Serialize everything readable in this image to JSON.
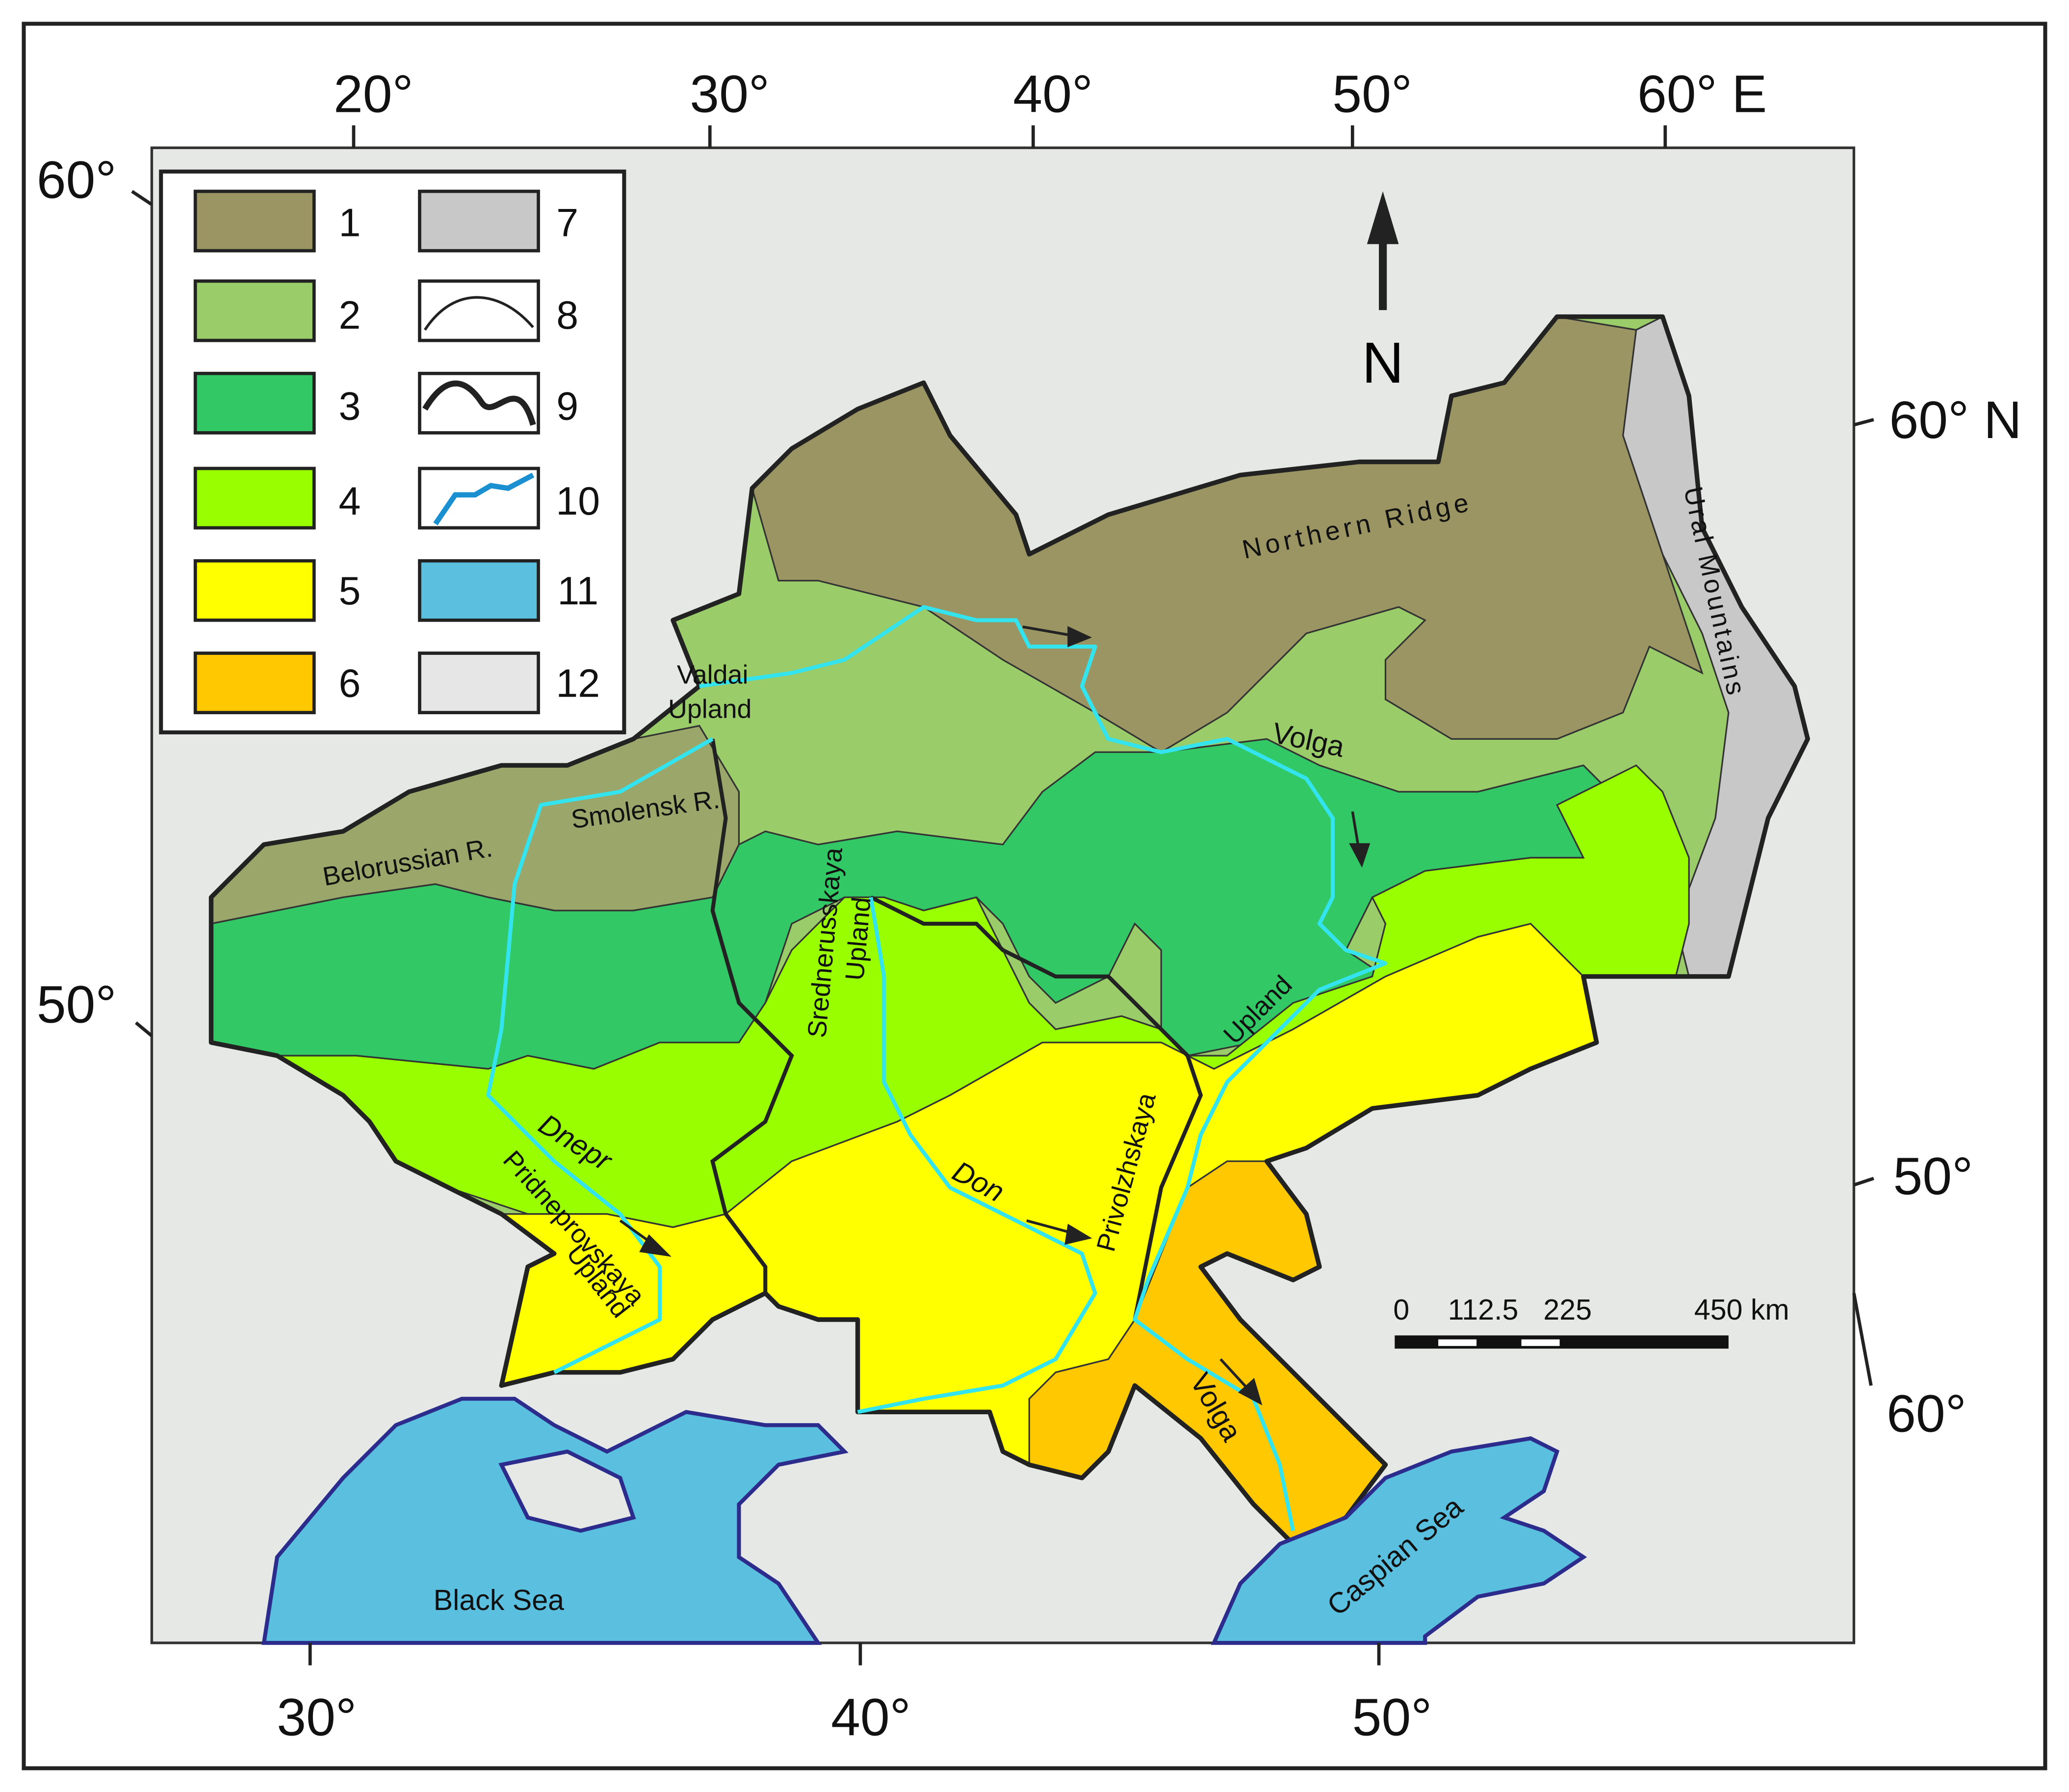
{
  "frame": {
    "top_longitudes": [
      "20°",
      "30°",
      "40°",
      "50°",
      "60° E"
    ],
    "left_latitudes": [
      "60°",
      "50°"
    ],
    "right_latitudes": [
      "60° N",
      "50°",
      "60°"
    ],
    "bottom_longitudes": [
      "30°",
      "40°",
      "50°"
    ]
  },
  "legend": {
    "items": [
      "1",
      "2",
      "3",
      "4",
      "5",
      "6",
      "7",
      "8",
      "9",
      "10",
      "11",
      "12"
    ]
  },
  "north_arrow": "N",
  "scale_bar": {
    "labels": [
      "0",
      "112.5",
      "225",
      "450 km"
    ]
  },
  "labels": {
    "northern_ridge": "Northern Ridge",
    "ural_mountains": "Ural Mountains",
    "valdai": "Valdai",
    "valdai_upland": "Upland",
    "smolensk": "Smolensk R.",
    "belorussian": "Belorussian R.",
    "volga_north": "Volga",
    "srednerusskaya": "Srednerusskaya",
    "srednerusskaya_upland": "Upland",
    "privolzhskaya": "Privolzhskaya",
    "privolzhskaya_upland": "Upland",
    "dnepr": "Dnepr",
    "pridneprovskaya": "Pridneprovskaya",
    "pridneprovskaya_upland": "Upland",
    "don": "Don",
    "volga_south": "Volga",
    "black_sea": "Black Sea",
    "caspian_sea": "Caspian Sea"
  }
}
